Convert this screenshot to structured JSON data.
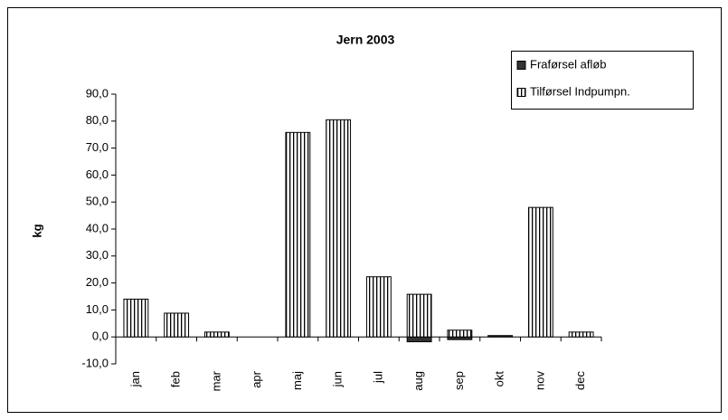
{
  "chart_data": {
    "type": "bar",
    "stacked": true,
    "title": "Jern 2003",
    "y_label": "kg",
    "categories": [
      "jan",
      "feb",
      "mar",
      "apr",
      "maj",
      "jun",
      "jul",
      "aug",
      "sep",
      "okt",
      "nov",
      "dec"
    ],
    "series": [
      {
        "name": "Fraførsel afløb",
        "color": "#333333",
        "hatch": "none",
        "values": [
          0,
          0,
          0,
          0,
          0,
          0,
          0,
          -1.8,
          -1.0,
          0.5,
          0,
          0
        ]
      },
      {
        "name": "Tilførsel Indpumpn.",
        "color": "#ffffff",
        "hatch": "vertical",
        "values": [
          14,
          8.8,
          1.8,
          0,
          75.8,
          80.5,
          22.3,
          15.8,
          2.5,
          0,
          48,
          1.8
        ]
      }
    ],
    "ylim": [
      -10,
      90
    ],
    "yticks": [
      {
        "value": -10,
        "label": "-10,0"
      },
      {
        "value": 0,
        "label": "0,0"
      },
      {
        "value": 10,
        "label": "10,0"
      },
      {
        "value": 20,
        "label": "20,0"
      },
      {
        "value": 30,
        "label": "30,0"
      },
      {
        "value": 40,
        "label": "40,0"
      },
      {
        "value": 50,
        "label": "50,0"
      },
      {
        "value": 60,
        "label": "60,0"
      },
      {
        "value": 70,
        "label": "70,0"
      },
      {
        "value": 80,
        "label": "80,0"
      },
      {
        "value": 90,
        "label": "90,0"
      }
    ],
    "grid": false,
    "legend": "top-right"
  }
}
